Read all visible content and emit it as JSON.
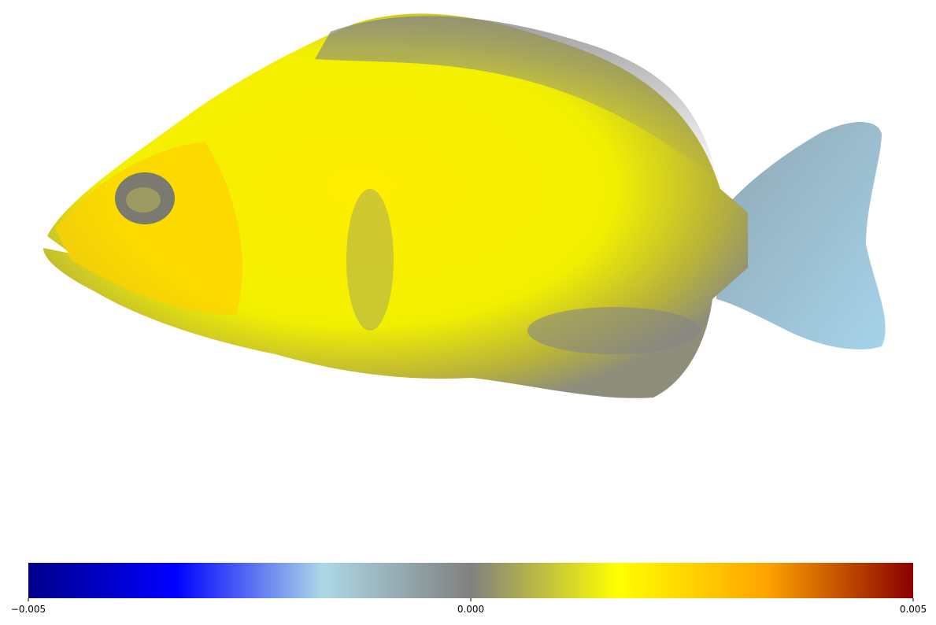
{
  "colorbar": {
    "lim": [
      -0.005,
      0.005
    ],
    "ticks": [
      {
        "value": -0.005,
        "label": "−0.005"
      },
      {
        "value": 0,
        "label": "0.000"
      },
      0.005
    ],
    "colors": [
      "#00008b",
      "#0000ff",
      "#add8e6",
      "#808080",
      "#ffff00",
      "#ffa500",
      "#8b0000"
    ]
  }
}
